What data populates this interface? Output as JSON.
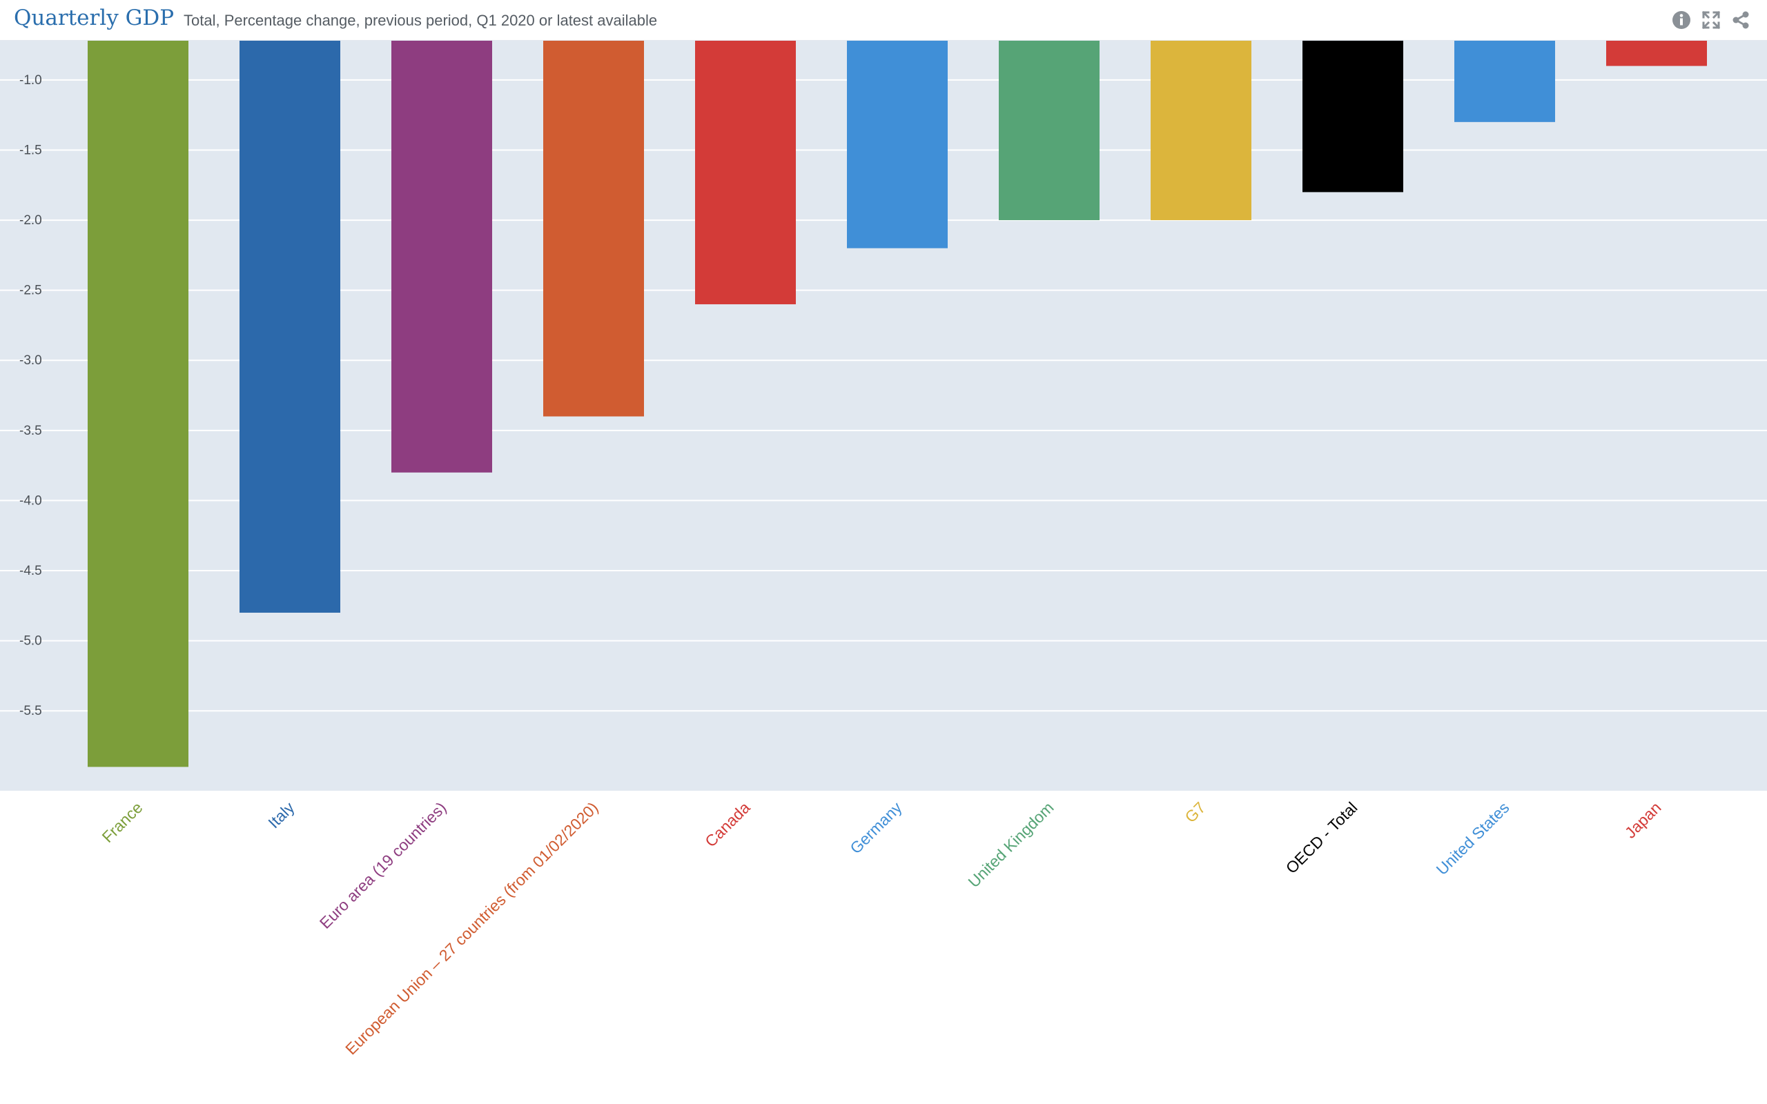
{
  "header": {
    "title": "Quarterly GDP",
    "subtitle": "Total, Percentage change, previous period, Q1 2020 or latest available",
    "icons": [
      "info-icon",
      "expand-icon",
      "share-icon"
    ]
  },
  "colors": {
    "title": "#2a6ead",
    "plot_background": "#e1e8f0",
    "gridline": "#ffffff"
  },
  "chart_data": {
    "type": "bar",
    "title": "Quarterly GDP",
    "subtitle": "Total, Percentage change, previous period, Q1 2020 or latest available",
    "xlabel": "",
    "ylabel": "",
    "ylim": [
      -6.07,
      -0.72
    ],
    "yticks": [
      -1.0,
      -1.5,
      -2.0,
      -2.5,
      -3.0,
      -3.5,
      -4.0,
      -4.5,
      -5.0,
      -5.5
    ],
    "ytick_labels": [
      "-1.0",
      "-1.5",
      "-2.0",
      "-2.5",
      "-3.0",
      "-3.5",
      "-4.0",
      "-4.5",
      "-5.0",
      "-5.5"
    ],
    "grid": true,
    "categories": [
      "France",
      "Italy",
      "Euro area (19 countries)",
      "European Union – 27 countries (from 01/02/2020)",
      "Canada",
      "Germany",
      "United Kingdom",
      "G7",
      "OECD - Total",
      "United States",
      "Japan"
    ],
    "values": [
      -5.9,
      -4.8,
      -3.8,
      -3.4,
      -2.6,
      -2.2,
      -2.0,
      -2.0,
      -1.8,
      -1.3,
      -0.9
    ],
    "colors": [
      "#7c9e3a",
      "#2c69ab",
      "#8e3d80",
      "#d05c31",
      "#d33b38",
      "#408fd7",
      "#56a476",
      "#dcb53c",
      "#000000",
      "#408fd7",
      "#d33b38"
    ]
  }
}
